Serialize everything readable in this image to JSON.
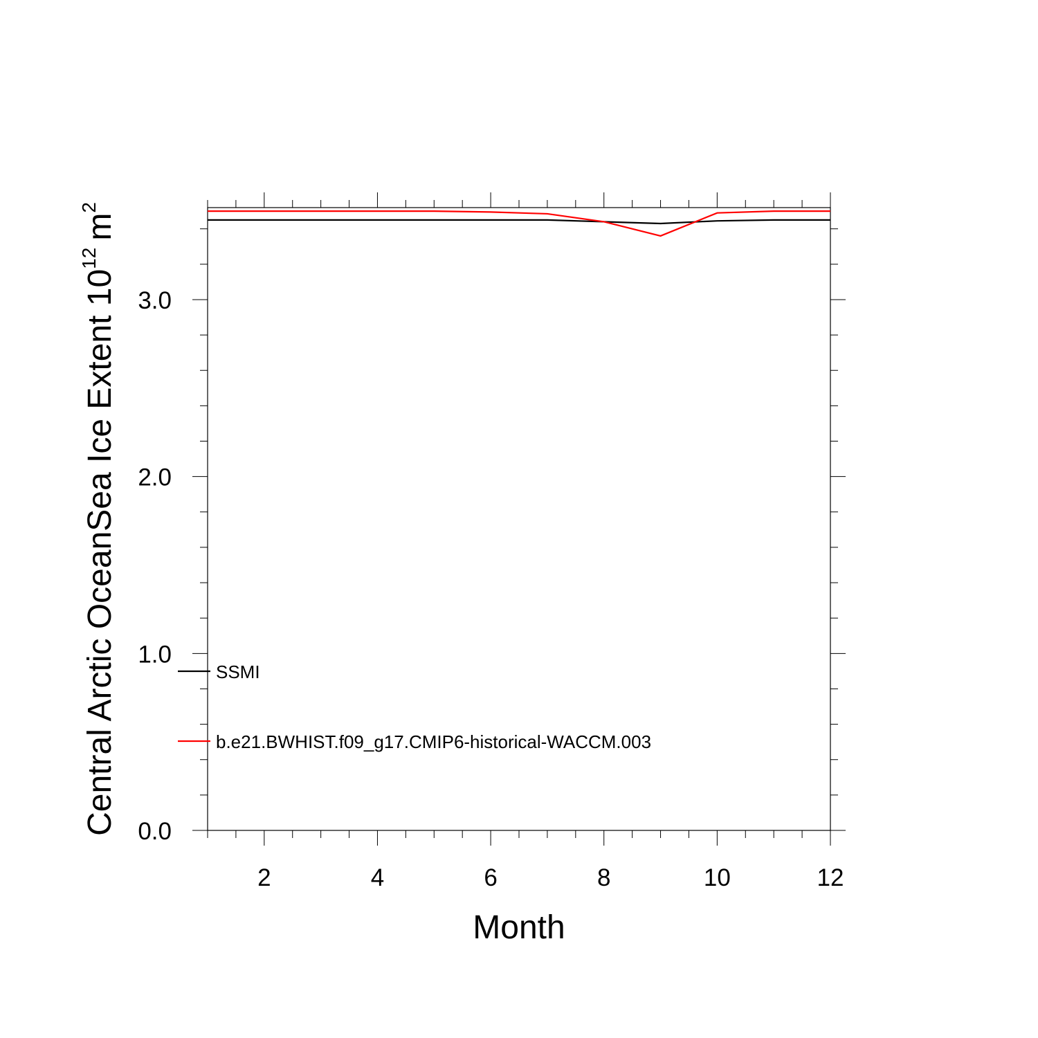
{
  "chart_data": {
    "type": "line",
    "title": "",
    "xlabel": "Month",
    "ylabel_text": "Central Arctic OceanSea Ice Extent 10",
    "ylabel_exponent": "12",
    "ylabel_unit": "m",
    "ylabel_unit_exponent": "2",
    "xlim": [
      1,
      12
    ],
    "ylim": [
      0,
      3.52
    ],
    "x_ticks": [
      2,
      4,
      6,
      8,
      10,
      12
    ],
    "x_tick_labels": [
      "2",
      "4",
      "6",
      "8",
      "10",
      "12"
    ],
    "y_ticks": [
      0,
      1,
      2,
      3
    ],
    "y_tick_labels": [
      "0.0",
      "1.0",
      "2.0",
      "3.0"
    ],
    "grid": false,
    "legend_position": "lower-left",
    "x": [
      1,
      2,
      3,
      4,
      5,
      6,
      7,
      8,
      9,
      10,
      11,
      12
    ],
    "series": [
      {
        "name": "SSMI",
        "color": "#000000",
        "values": [
          3.45,
          3.45,
          3.45,
          3.45,
          3.45,
          3.45,
          3.45,
          3.44,
          3.43,
          3.445,
          3.45,
          3.45
        ]
      },
      {
        "name": "b.e21.BWHIST.f09_g17.CMIP6-historical-WACCM.003",
        "color": "#ff0000",
        "values": [
          3.5,
          3.5,
          3.5,
          3.5,
          3.5,
          3.495,
          3.485,
          3.44,
          3.36,
          3.49,
          3.5,
          3.5
        ]
      }
    ]
  }
}
